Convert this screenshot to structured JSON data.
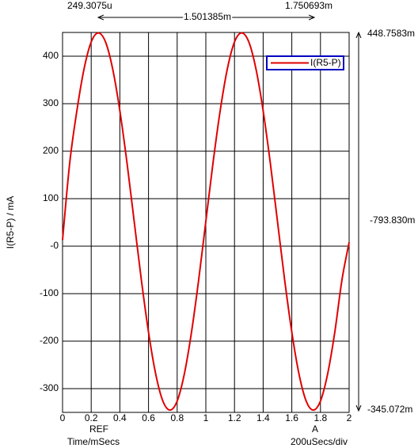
{
  "chart_data": {
    "type": "line",
    "y_label": "I(R5-P) / mA",
    "x_label": "Time/mSecs",
    "x_scale_label": "200uSecs/div",
    "cursor_labels": {
      "ref": "REF",
      "a": "A"
    },
    "annotations": {
      "cursor1_x": "249.3075u",
      "delta_x": "1.501385m",
      "cursor2_x": "1.750693m",
      "cursor1_y": "448.7583m",
      "delta_y": "-793.830m",
      "cursor2_y": "-345.072m"
    },
    "x": [
      0,
      0.05,
      0.1,
      0.15,
      0.2,
      0.25,
      0.3,
      0.35,
      0.4,
      0.45,
      0.5,
      0.55,
      0.6,
      0.65,
      0.7,
      0.75,
      0.8,
      0.85,
      0.9,
      0.95,
      1,
      1.05,
      1.1,
      1.15,
      1.2,
      1.25,
      1.3,
      1.35,
      1.4,
      1.45,
      1.5,
      1.55,
      1.6,
      1.65,
      1.7,
      1.75,
      1.8,
      1.85,
      1.9,
      1.95,
      2
    ],
    "series": [
      {
        "name": "I(R5-P)",
        "color": "#e00000",
        "values": [
          13,
          175,
          285,
          373,
          430,
          449,
          430,
          373,
          285,
          175,
          52,
          -71,
          -181,
          -269,
          -326,
          -345,
          -326,
          -269,
          -181,
          -71,
          52,
          175,
          285,
          373,
          430,
          449,
          430,
          373,
          285,
          175,
          52,
          -71,
          -181,
          -269,
          -326,
          -345,
          -326,
          -269,
          -181,
          -71,
          8
        ]
      }
    ],
    "xlim": [
      0,
      2
    ],
    "xticks": [
      0,
      0.2,
      0.4,
      0.6,
      0.8,
      1,
      1.2,
      1.4,
      1.6,
      1.8,
      2
    ],
    "ylim": [
      -350,
      450
    ],
    "yticks": [
      -300,
      -200,
      -100,
      {
        "value": 0,
        "label": "-0"
      },
      100,
      200,
      300,
      400
    ],
    "grid": true
  }
}
